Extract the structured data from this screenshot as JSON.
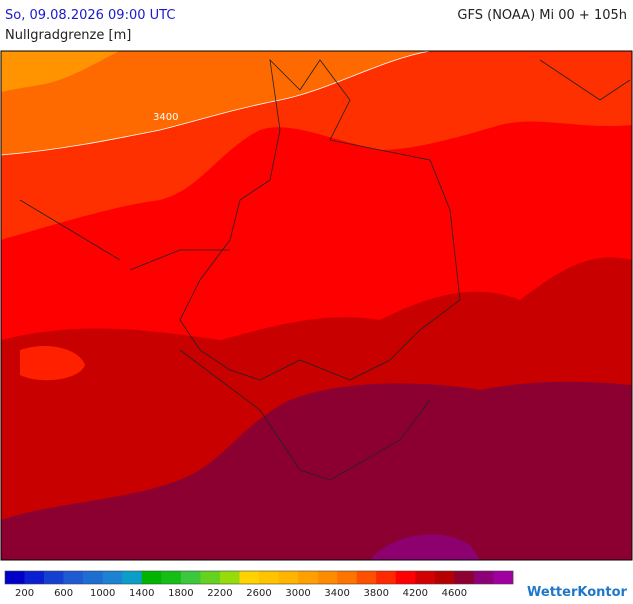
{
  "header": {
    "valid_time": "So, 09.08.2026 09:00 UTC",
    "model_run": "GFS (NOAA) Mi 00 + 105h",
    "title": "Nullgradgrenze [m]"
  },
  "map": {
    "contour_label": "3400"
  },
  "legend": {
    "labels": [
      200,
      600,
      1000,
      1400,
      1800,
      2200,
      2600,
      3000,
      3400,
      3800,
      4200,
      4600
    ],
    "colors": [
      "#0000c8",
      "#0a1ed2",
      "#1440d2",
      "#1e5ad2",
      "#1e6ed2",
      "#1e82d2",
      "#0a9ec8",
      "#00b400",
      "#14be14",
      "#3cc83c",
      "#64d21e",
      "#96dc0a",
      "#ffd200",
      "#ffc300",
      "#ffb400",
      "#ffa000",
      "#ff8c00",
      "#ff7300",
      "#ff5000",
      "#ff2800",
      "#ff0000",
      "#d20000",
      "#b40000",
      "#8c0032",
      "#8c0078",
      "#a000a0"
    ]
  },
  "logo": "WetterKontor"
}
